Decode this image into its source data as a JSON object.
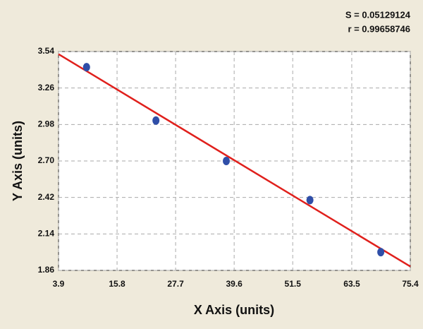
{
  "chart_data": {
    "type": "scatter",
    "annotations": [
      "S = 0.05129124",
      "r = 0.99658746"
    ],
    "x_label": "X Axis (units)",
    "y_label": "Y Axis (units)",
    "x": [
      9.6,
      23.7,
      38.0,
      55.0,
      69.4
    ],
    "series": [
      {
        "color": "#2f4ea8",
        "values": [
          3.42,
          3.01,
          2.7,
          2.4,
          2.0
        ]
      }
    ],
    "fit_line": {
      "color": "#e0201c",
      "x": [
        3.9,
        75.4
      ],
      "values": [
        3.52,
        1.89
      ]
    },
    "xlim": [
      3.9,
      75.4
    ],
    "xticks": [
      3.9,
      15.8,
      27.7,
      39.6,
      51.5,
      63.5,
      75.4
    ],
    "ylim": [
      1.86,
      3.54
    ],
    "yticks": [
      1.86,
      2.14,
      2.42,
      {
        "value": 2.7,
        "label": "2.70"
      },
      2.98,
      3.26,
      3.54
    ],
    "grid": true
  }
}
